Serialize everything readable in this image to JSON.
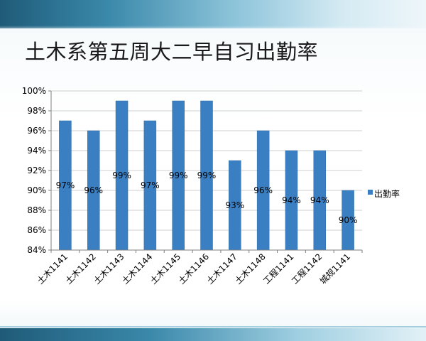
{
  "slide": {
    "title": "土木系第五周大二早自习出勤率"
  },
  "chart_data": {
    "type": "bar",
    "title": "土木系第五周大二早自习出勤率",
    "categories": [
      "土木1141",
      "土木1142",
      "土木1143",
      "土木1144",
      "土木1145",
      "土木1146",
      "土木1147",
      "土木1148",
      "工程1141",
      "工程1142",
      "城规1141"
    ],
    "series": [
      {
        "name": "出勤率",
        "values": [
          97,
          96,
          99,
          97,
          99,
          99,
          93,
          96,
          94,
          94,
          90
        ],
        "labels": [
          "97%",
          "96%",
          "99%",
          "97%",
          "99%",
          "99%",
          "93%",
          "96%",
          "94%",
          "94%",
          "90%"
        ]
      }
    ],
    "ylim": [
      84,
      100
    ],
    "yticks": [
      84,
      86,
      88,
      90,
      92,
      94,
      96,
      98,
      100
    ],
    "ytick_labels": [
      "84%",
      "86%",
      "88%",
      "90%",
      "92%",
      "94%",
      "96%",
      "98%",
      "100%"
    ],
    "xlabel": "",
    "ylabel": "",
    "grid": true,
    "legend": "right",
    "colors": {
      "bar": "#3b7fc3",
      "bar_edge": "#2f6aa6",
      "grid": "#bfbfbf",
      "axis": "#7f7f7f"
    }
  }
}
